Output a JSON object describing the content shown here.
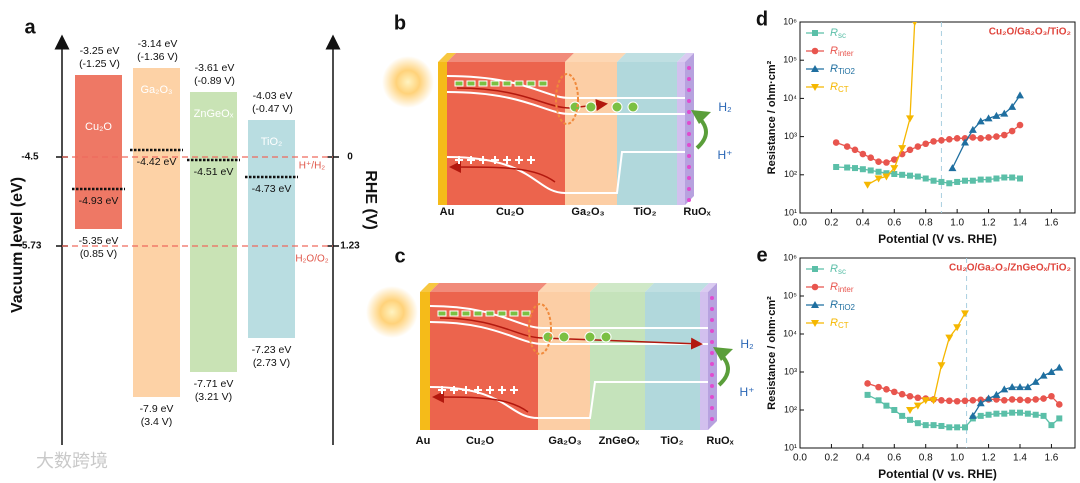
{
  "watermark": "大数跨境",
  "panel_a": {
    "label": "a",
    "y_label": "Vacuum level (eV)",
    "y2_label": "RHE (V)",
    "left_ticks": [
      "-4.5",
      "-5.73"
    ],
    "right_ticks": [
      "0",
      "1.23"
    ],
    "redox": [
      "H⁺/H₂",
      "H₂O/O₂"
    ],
    "materials": [
      {
        "name": "Cu₂O",
        "cb": "-3.25 eV",
        "cb_rhe": "(-1.25 V)",
        "ef": "-4.93 eV",
        "vb": "-5.35 eV",
        "vb_rhe": "(0.85 V)"
      },
      {
        "name": "Ga₂O₃",
        "cb": "-3.14 eV",
        "cb_rhe": "(-1.36 V)",
        "ef": "-4.42 eV",
        "vb": "-7.9 eV",
        "vb_rhe": "(3.4 V)"
      },
      {
        "name": "ZnGeOₓ",
        "cb": "-3.61 eV",
        "cb_rhe": "(-0.89 V)",
        "ef": "-4.51 eV",
        "vb": "-7.71 eV",
        "vb_rhe": "(3.21 V)"
      },
      {
        "name": "TiO₂",
        "cb": "-4.03 eV",
        "cb_rhe": "(-0.47 V)",
        "ef": "-4.73 eV",
        "vb": "-7.23 eV",
        "vb_rhe": "(2.73 V)"
      }
    ]
  },
  "panel_b": {
    "label": "b",
    "layers": [
      "Au",
      "Cu₂O",
      "Ga₂O₃",
      "TiO₂",
      "RuOₓ"
    ],
    "products": [
      "H₂",
      "H⁺"
    ]
  },
  "panel_c": {
    "label": "c",
    "layers": [
      "Au",
      "Cu₂O",
      "Ga₂O₃",
      "ZnGeOₓ",
      "TiO₂",
      "RuOₓ"
    ],
    "products": [
      "H₂",
      "H⁺"
    ]
  },
  "panel_d": {
    "label": "d",
    "chart": {
      "type": "scatter",
      "log_y": true,
      "annotation": "Cu₂O/Ga₂O₃/TiO₂",
      "x_label": "Potential (V vs. RHE)",
      "y_label": "Resistance / ohm·cm²",
      "xlim": [
        0,
        1.75
      ],
      "ylim": [
        10,
        1000000
      ],
      "vline": 0.9,
      "xticks": [
        {
          "value": 0,
          "label": "0.0"
        },
        {
          "value": 0.2,
          "label": "0.2"
        },
        {
          "value": 0.4,
          "label": "0.4"
        },
        {
          "value": 0.6,
          "label": "0.6"
        },
        {
          "value": 0.8,
          "label": "0.8"
        },
        {
          "value": 1,
          "label": "1.0"
        },
        {
          "value": 1.2,
          "label": "1.2"
        },
        {
          "value": 1.4,
          "label": "1.4"
        },
        {
          "value": 1.6,
          "label": "1.6"
        }
      ],
      "yticks": [
        {
          "value": 10,
          "label": "10¹"
        },
        {
          "value": 100,
          "label": "10²"
        },
        {
          "value": 1000,
          "label": "10³"
        },
        {
          "value": 10000,
          "label": "10⁴"
        },
        {
          "value": 100000,
          "label": "10⁵"
        },
        {
          "value": 1000000,
          "label": "10⁶"
        }
      ],
      "series": [
        {
          "name": "R",
          "subscript": "sc",
          "color": "#5bbfa8",
          "marker": "square",
          "x": [
            0.23,
            0.3,
            0.35,
            0.4,
            0.45,
            0.5,
            0.55,
            0.6,
            0.65,
            0.7,
            0.75,
            0.8,
            0.85,
            0.9,
            0.95,
            1.0,
            1.05,
            1.1,
            1.15,
            1.2,
            1.25,
            1.3,
            1.35,
            1.4
          ],
          "values": [
            160,
            155,
            150,
            140,
            130,
            120,
            110,
            105,
            100,
            95,
            90,
            80,
            70,
            65,
            60,
            65,
            70,
            70,
            75,
            75,
            80,
            85,
            85,
            80
          ]
        },
        {
          "name": "R",
          "subscript": "inter",
          "color": "#e8554e",
          "marker": "circle",
          "x": [
            0.23,
            0.3,
            0.35,
            0.4,
            0.45,
            0.5,
            0.55,
            0.6,
            0.65,
            0.7,
            0.75,
            0.8,
            0.85,
            0.9,
            0.95,
            1.0,
            1.05,
            1.1,
            1.15,
            1.2,
            1.25,
            1.3,
            1.35,
            1.4
          ],
          "values": [
            700,
            550,
            450,
            350,
            280,
            220,
            210,
            250,
            350,
            450,
            550,
            650,
            750,
            800,
            850,
            900,
            900,
            950,
            900,
            950,
            1000,
            1100,
            1400,
            2000
          ]
        },
        {
          "name": "R",
          "subscript": "TiO2",
          "color": "#1f6fa0",
          "marker": "triangle",
          "x": [
            0.97,
            1.05,
            1.1,
            1.15,
            1.2,
            1.25,
            1.3,
            1.35,
            1.4
          ],
          "values": [
            150,
            700,
            1500,
            2500,
            3000,
            3500,
            4000,
            6000,
            12000
          ]
        },
        {
          "name": "R",
          "subscript": "CT",
          "color": "#f5b700",
          "marker": "down",
          "x": [
            0.43,
            0.5,
            0.55,
            0.6,
            0.65,
            0.7,
            0.73
          ],
          "values": [
            55,
            80,
            90,
            150,
            500,
            3000,
            1000000
          ]
        }
      ]
    }
  },
  "panel_e": {
    "label": "e",
    "chart": {
      "type": "scatter",
      "log_y": true,
      "annotation": "Cu₂O/Ga₂O₃/ZnGeOₓ/TiO₂",
      "x_label": "Potential (V vs. RHE)",
      "y_label": "Resistance / ohm·cm²",
      "xlim": [
        0,
        1.75
      ],
      "ylim": [
        10,
        1000000
      ],
      "vline": 1.06,
      "xticks": [
        {
          "value": 0,
          "label": "0.0"
        },
        {
          "value": 0.2,
          "label": "0.2"
        },
        {
          "value": 0.4,
          "label": "0.4"
        },
        {
          "value": 0.6,
          "label": "0.6"
        },
        {
          "value": 0.8,
          "label": "0.8"
        },
        {
          "value": 1,
          "label": "1.0"
        },
        {
          "value": 1.2,
          "label": "1.2"
        },
        {
          "value": 1.4,
          "label": "1.4"
        },
        {
          "value": 1.6,
          "label": "1.6"
        }
      ],
      "yticks": [
        {
          "value": 10,
          "label": "10¹"
        },
        {
          "value": 100,
          "label": "10²"
        },
        {
          "value": 1000,
          "label": "10³"
        },
        {
          "value": 10000,
          "label": "10⁴"
        },
        {
          "value": 100000,
          "label": "10⁵"
        },
        {
          "value": 1000000,
          "label": "10⁶"
        }
      ],
      "series": [
        {
          "name": "R",
          "subscript": "sc",
          "color": "#5bbfa8",
          "marker": "square",
          "x": [
            0.43,
            0.5,
            0.55,
            0.6,
            0.65,
            0.7,
            0.75,
            0.8,
            0.85,
            0.9,
            0.95,
            1.0,
            1.05,
            1.1,
            1.15,
            1.2,
            1.25,
            1.3,
            1.35,
            1.4,
            1.45,
            1.5,
            1.55,
            1.6,
            1.65
          ],
          "values": [
            250,
            180,
            130,
            100,
            70,
            55,
            45,
            40,
            40,
            38,
            35,
            35,
            35,
            60,
            70,
            75,
            80,
            80,
            85,
            85,
            80,
            75,
            70,
            40,
            60
          ]
        },
        {
          "name": "R",
          "subscript": "inter",
          "color": "#e8554e",
          "marker": "circle",
          "x": [
            0.43,
            0.5,
            0.55,
            0.6,
            0.65,
            0.7,
            0.75,
            0.8,
            0.85,
            0.9,
            0.95,
            1.0,
            1.05,
            1.1,
            1.15,
            1.2,
            1.25,
            1.3,
            1.35,
            1.4,
            1.45,
            1.5,
            1.55,
            1.6,
            1.65
          ],
          "values": [
            500,
            400,
            350,
            300,
            260,
            230,
            210,
            200,
            190,
            180,
            175,
            170,
            175,
            180,
            185,
            190,
            190,
            180,
            190,
            185,
            180,
            190,
            200,
            230,
            140
          ]
        },
        {
          "name": "R",
          "subscript": "TiO2",
          "color": "#1f6fa0",
          "marker": "triangle",
          "x": [
            1.1,
            1.15,
            1.2,
            1.25,
            1.3,
            1.35,
            1.4,
            1.45,
            1.5,
            1.55,
            1.6,
            1.65
          ],
          "values": [
            70,
            150,
            200,
            250,
            350,
            400,
            400,
            400,
            550,
            800,
            1000,
            1300
          ]
        },
        {
          "name": "R",
          "subscript": "CT",
          "color": "#f5b700",
          "marker": "down",
          "x": [
            0.7,
            0.75,
            0.8,
            0.85,
            0.9,
            0.95,
            1.0,
            1.05
          ],
          "values": [
            100,
            130,
            180,
            180,
            1500,
            8000,
            15000,
            35000
          ]
        }
      ]
    }
  }
}
